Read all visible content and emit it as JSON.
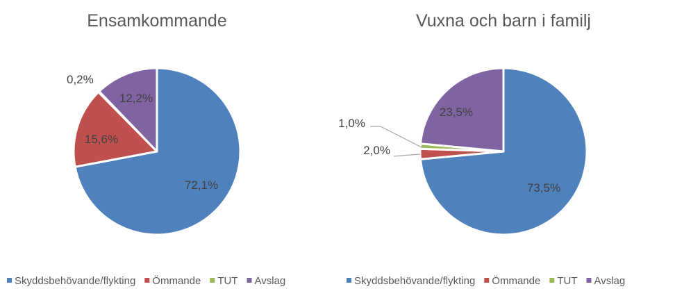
{
  "legend": {
    "items": [
      {
        "key": "skydd",
        "label": "Skyddsbehövande/flykting",
        "color": "#4f81bd"
      },
      {
        "key": "ommande",
        "label": "Ömmande",
        "color": "#c0504d"
      },
      {
        "key": "tut",
        "label": "TUT",
        "color": "#9bbb59"
      },
      {
        "key": "avslag",
        "label": "Avslag",
        "color": "#8064a2"
      }
    ]
  },
  "chart_data": [
    {
      "type": "pie",
      "title": "Ensamkommande",
      "legend_position": "bottom",
      "slices": [
        {
          "key": "skydd",
          "name": "Skyddsbehövande/flykting",
          "value": 72.1,
          "label": "72,1%",
          "color": "#4f81bd"
        },
        {
          "key": "ommande",
          "name": "Ömmande",
          "value": 15.6,
          "label": "15,6%",
          "color": "#c0504d"
        },
        {
          "key": "tut",
          "name": "TUT",
          "value": 0.2,
          "label": "0,2%",
          "color": "#9bbb59"
        },
        {
          "key": "avslag",
          "name": "Avslag",
          "value": 12.2,
          "label": "12,2%",
          "color": "#8064a2"
        }
      ]
    },
    {
      "type": "pie",
      "title": "Vuxna och barn i familj",
      "legend_position": "bottom",
      "slices": [
        {
          "key": "skydd",
          "name": "Skyddsbehövande/flykting",
          "value": 73.5,
          "label": "73,5%",
          "color": "#4f81bd"
        },
        {
          "key": "ommande",
          "name": "Ömmande",
          "value": 2.0,
          "label": "2,0%",
          "color": "#c0504d"
        },
        {
          "key": "tut",
          "name": "TUT",
          "value": 1.0,
          "label": "1,0%",
          "color": "#9bbb59"
        },
        {
          "key": "avslag",
          "name": "Avslag",
          "value": 23.5,
          "label": "23,5%",
          "color": "#8064a2"
        }
      ]
    }
  ]
}
